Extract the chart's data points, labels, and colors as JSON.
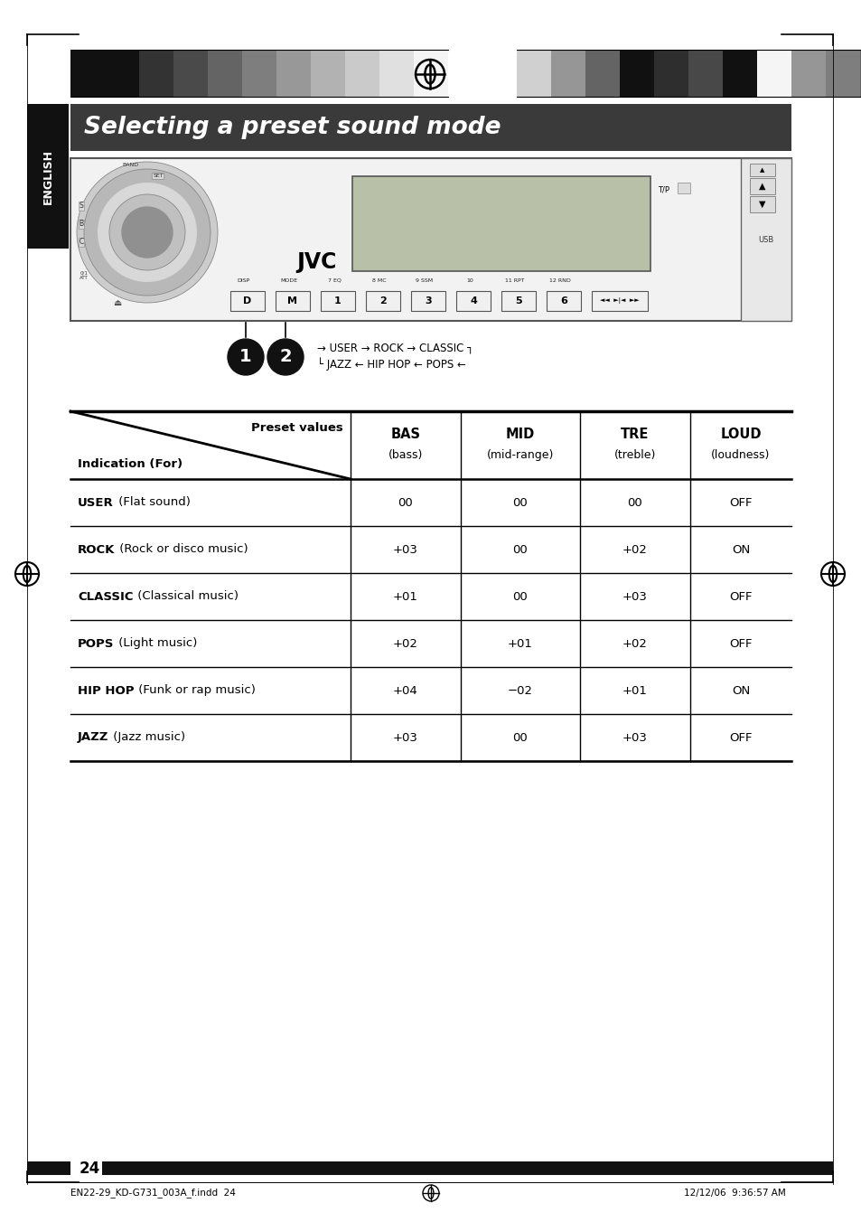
{
  "title": "Selecting a preset sound mode",
  "title_bg": "#3a3a3a",
  "title_color": "#ffffff",
  "page_bg": "#ffffff",
  "page_number": "24",
  "footer_left": "EN22-29_KD-G731_003A_f.indd  24",
  "footer_right": "12/12/06  9:36:57 AM",
  "table_header_row1": [
    "Preset values",
    "BAS",
    "MID",
    "TRE",
    "LOUD"
  ],
  "table_header_row2": [
    "Indication (For)",
    "(bass)",
    "(mid-range)",
    "(treble)",
    "(loudness)"
  ],
  "table_rows": [
    [
      "USER",
      " (Flat sound)",
      "00",
      "00",
      "00",
      "OFF"
    ],
    [
      "ROCK",
      " (Rock or disco music)",
      "+03",
      "00",
      "+02",
      "ON"
    ],
    [
      "CLASSIC",
      " (Classical music)",
      "+01",
      "00",
      "+03",
      "OFF"
    ],
    [
      "POPS",
      " (Light music)",
      "+02",
      "+01",
      "+02",
      "OFF"
    ],
    [
      "HIP HOP",
      " (Funk or rap music)",
      "+04",
      "−02",
      "+01",
      "ON"
    ],
    [
      "JAZZ",
      " (Jazz music)",
      "+03",
      "00",
      "+03",
      "OFF"
    ]
  ],
  "cycle_text_line1": "→ USER → ROCK → CLASSIC ┐",
  "cycle_text_line2": "└ JAZZ ← HIP HOP ← POPS ←",
  "header_bar_colors_left": [
    "#111111",
    "#111111",
    "#333333",
    "#4a4a4a",
    "#646464",
    "#7e7e7e",
    "#989898",
    "#b2b2b2",
    "#cacaca",
    "#e0e0e0",
    "#f5f5f5"
  ],
  "header_bar_colors_right": [
    "#d0d0d0",
    "#969696",
    "#646464",
    "#111111",
    "#2e2e2e",
    "#484848",
    "#111111",
    "#f5f5f5",
    "#969696",
    "#7e7e7e",
    "#646464"
  ],
  "sidebar_bg": "#111111",
  "sidebar_text": "ENGLISH"
}
